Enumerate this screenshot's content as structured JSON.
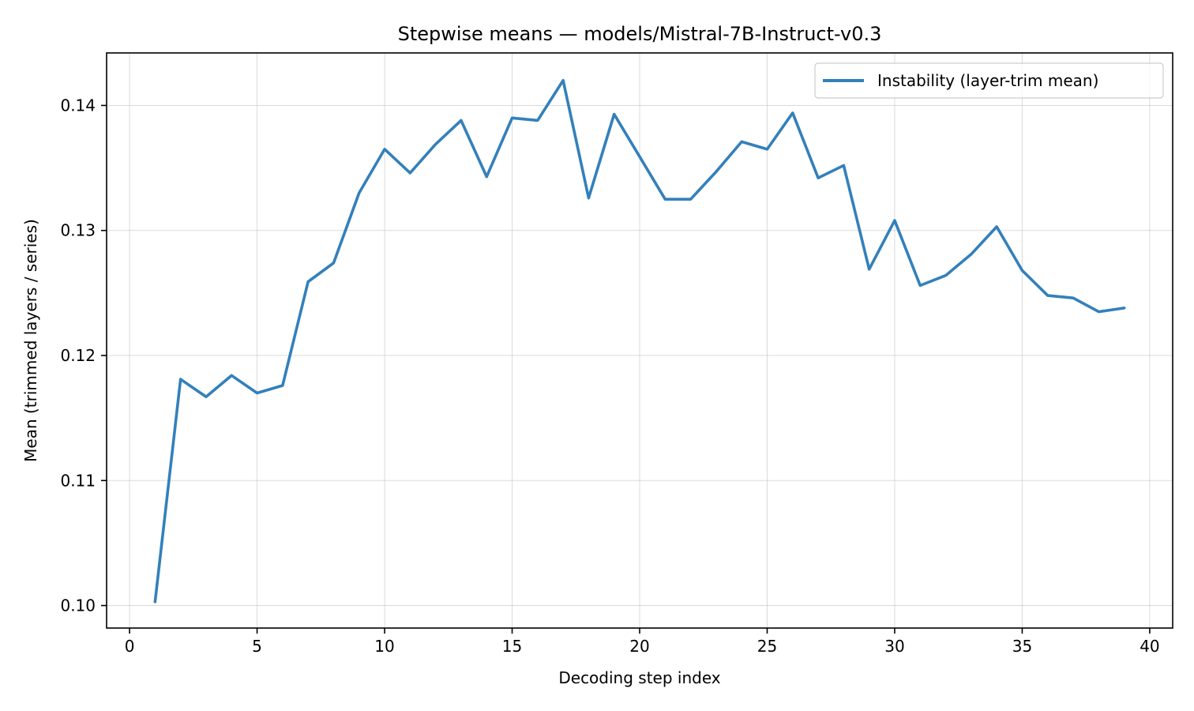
{
  "chart_data": {
    "type": "line",
    "title": "Stepwise means — models/Mistral-7B-Instruct-v0.3",
    "xlabel": "Decoding step index",
    "ylabel": "Mean (trimmed layers / series)",
    "xlim": [
      -0.9,
      40.9
    ],
    "ylim": [
      0.0982,
      0.1442
    ],
    "xticks": [
      0,
      5,
      10,
      15,
      20,
      25,
      30,
      35,
      40
    ],
    "xtick_labels": [
      "0",
      "5",
      "10",
      "15",
      "20",
      "25",
      "30",
      "35",
      "40"
    ],
    "yticks": [
      0.1,
      0.11,
      0.12,
      0.13,
      0.14
    ],
    "ytick_labels": [
      "0.10",
      "0.11",
      "0.12",
      "0.13",
      "0.14"
    ],
    "grid": true,
    "legend_position": "top-right",
    "series": [
      {
        "name": "Instability (layer-trim mean)",
        "color": "#3380bb",
        "x": [
          1,
          2,
          3,
          4,
          5,
          6,
          7,
          8,
          9,
          10,
          11,
          12,
          13,
          14,
          15,
          16,
          17,
          18,
          19,
          20,
          21,
          22,
          23,
          24,
          25,
          26,
          27,
          28,
          29,
          30,
          31,
          32,
          33,
          34,
          35,
          36,
          37,
          38,
          39
        ],
        "y": [
          0.1003,
          0.1181,
          0.1167,
          0.1184,
          0.117,
          0.1176,
          0.1259,
          0.1274,
          0.133,
          0.1365,
          0.1346,
          0.1369,
          0.1388,
          0.1343,
          0.139,
          0.1388,
          0.142,
          0.1326,
          0.1393,
          0.1359,
          0.1325,
          0.1325,
          0.1347,
          0.1371,
          0.1365,
          0.1394,
          0.1342,
          0.1352,
          0.1269,
          0.1308,
          0.1256,
          0.1264,
          0.1281,
          0.1303,
          0.1268,
          0.1248,
          0.1246,
          0.1235,
          0.1238
        ]
      }
    ]
  }
}
